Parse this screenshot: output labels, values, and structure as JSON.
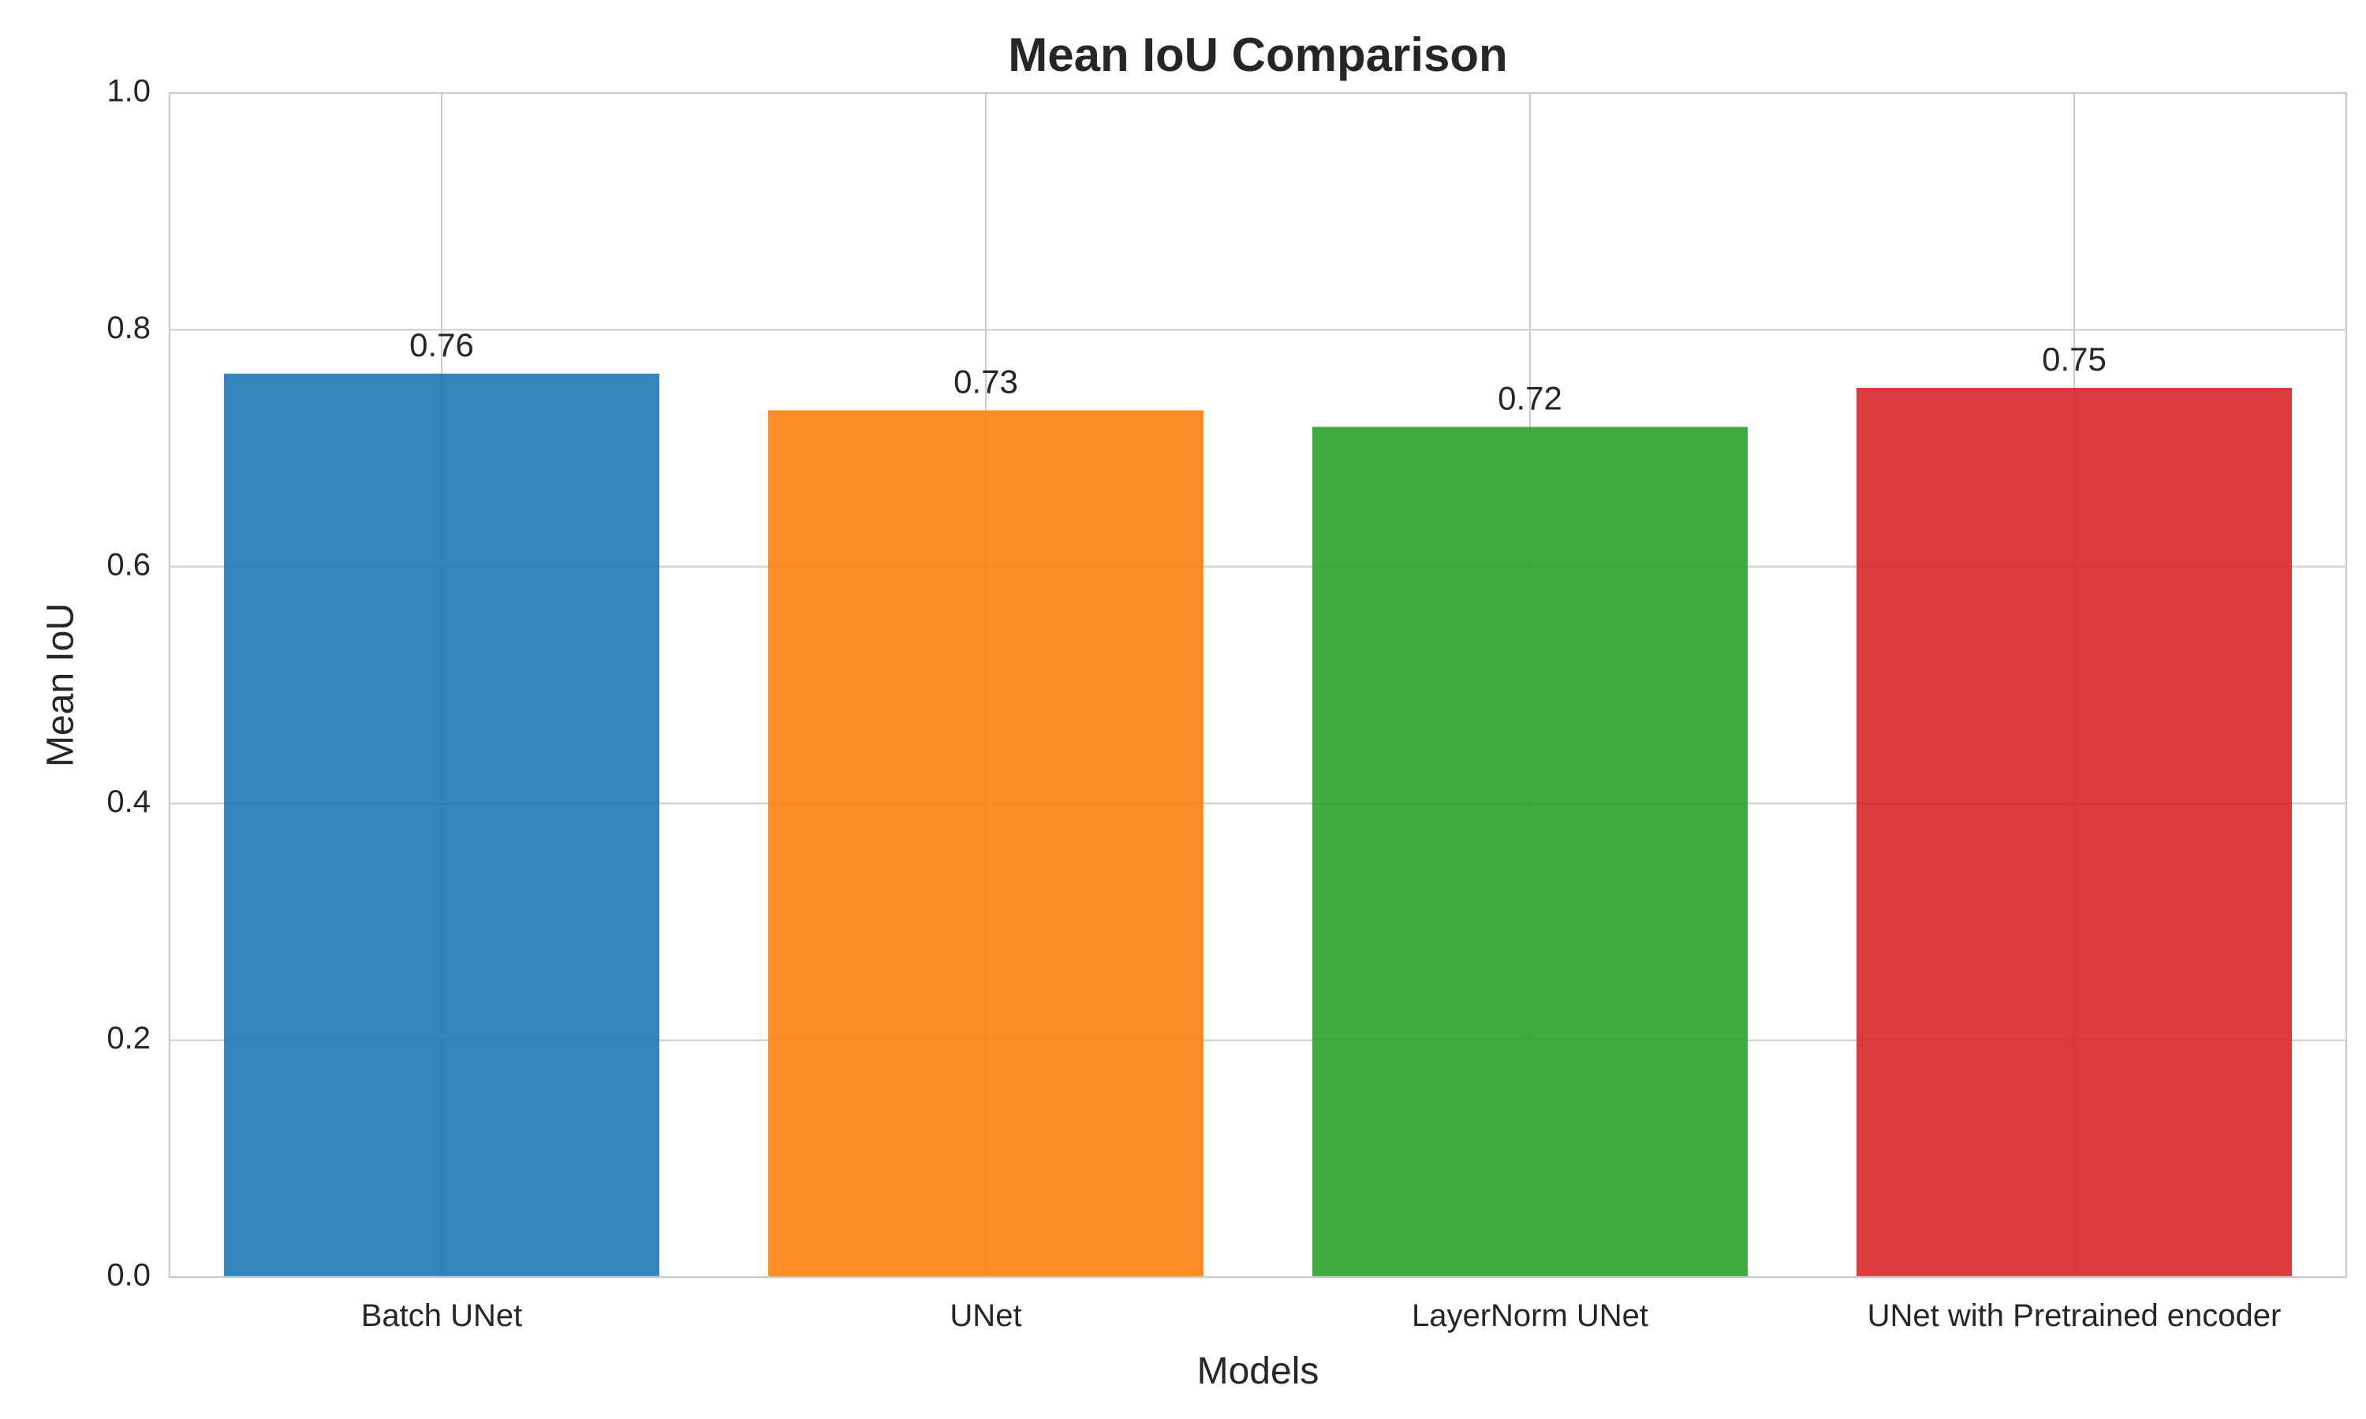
{
  "chart_data": {
    "type": "bar",
    "title": "Mean IoU Comparison",
    "xlabel": "Models",
    "ylabel": "Mean IoU",
    "categories": [
      "Batch UNet",
      "UNet",
      "LayerNorm UNet",
      "UNet with Pretrained encoder"
    ],
    "values": [
      0.763,
      0.732,
      0.718,
      0.751
    ],
    "data_labels": [
      "0.76",
      "0.73",
      "0.72",
      "0.75"
    ],
    "colors": [
      "#1f77b4",
      "#ff7f0e",
      "#2ca02c",
      "#d62728"
    ],
    "ylim": [
      0,
      1.0
    ],
    "yticks": [
      0.0,
      0.2,
      0.4,
      0.6,
      0.8,
      1.0
    ],
    "ytick_labels": [
      "0.0",
      "0.2",
      "0.4",
      "0.6",
      "0.8",
      "1.0"
    ],
    "grid": true,
    "legend": "none"
  }
}
